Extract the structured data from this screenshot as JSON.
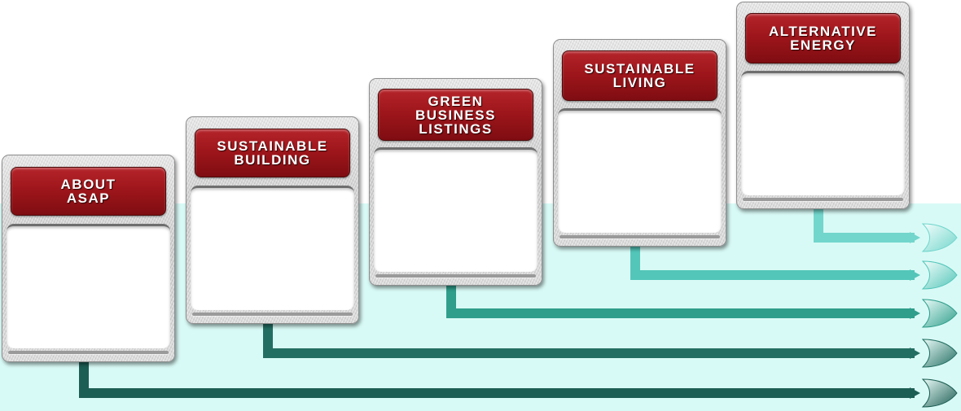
{
  "cards": [
    {
      "title": "ABOUT\nASAP"
    },
    {
      "title": "SUSTAINABLE\nBUILDING"
    },
    {
      "title": "GREEN\nBUSINESS\nLISTINGS"
    },
    {
      "title": "SUSTAINABLE\nLIVING"
    },
    {
      "title": "ALTERNATIVE\nENERGY"
    }
  ],
  "colors": {
    "title_bar": "#9e161b",
    "panel_background": "#d8faf6",
    "connector_1": "#1d5e54",
    "connector_2": "#236e62",
    "connector_3": "#2f9e8b",
    "connector_4": "#53c6b9",
    "connector_5": "#72d6cc"
  },
  "icons": [
    "leaf-arrow-icon"
  ]
}
